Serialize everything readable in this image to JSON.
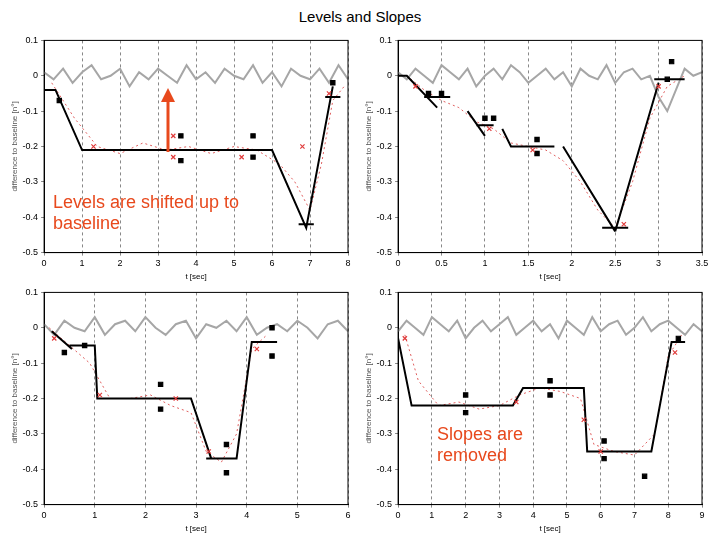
{
  "title": "Levels and Slopes",
  "chart_data": [
    {
      "type": "line",
      "xlabel": "t [sec]",
      "ylabel": "difference to baseline [n°]",
      "xlim": [
        0,
        8
      ],
      "xticks": [
        0,
        1,
        2,
        3,
        4,
        5,
        6,
        7,
        8
      ],
      "ylim": [
        -0.5,
        0.1
      ],
      "yticks": [
        -0.5,
        -0.4,
        -0.3,
        -0.2,
        -0.1,
        0,
        0.1
      ],
      "grid": "x",
      "annotation": "Levels are shifted up to baseline",
      "series": [
        {
          "type": "line",
          "color": "#a6a6a6",
          "line_style": "solid",
          "marker": "none",
          "x": [
            0,
            0.25,
            0.5,
            0.75,
            1,
            1.25,
            1.5,
            1.75,
            2,
            2.25,
            2.5,
            2.75,
            3,
            3.25,
            3.5,
            3.75,
            4,
            4.25,
            4.5,
            4.75,
            5,
            5.25,
            5.5,
            5.75,
            6,
            6.25,
            6.5,
            6.75,
            7,
            7.25,
            7.5,
            7.75,
            8
          ],
          "values": [
            0.01,
            -0.01,
            0.02,
            -0.02,
            0.01,
            0.03,
            -0.01,
            0.0,
            0.02,
            -0.03,
            0.01,
            -0.01,
            0.02,
            0.0,
            -0.02,
            0.03,
            -0.01,
            0.01,
            -0.02,
            0.02,
            0.0,
            -0.01,
            0.03,
            -0.02,
            0.01,
            -0.03,
            0.02,
            0.0,
            -0.01,
            0.02,
            -0.02,
            0.03,
            -0.01
          ]
        },
        {
          "type": "line",
          "color": "#e06060",
          "line_style": "dotted",
          "marker": "none",
          "x": [
            0.2,
            0.8,
            1.4,
            2,
            2.6,
            3.2,
            3.8,
            4.4,
            5,
            5.6,
            6.2,
            6.6,
            7.0,
            7.3,
            7.6,
            7.9
          ],
          "values": [
            -0.02,
            -0.12,
            -0.2,
            -0.22,
            -0.19,
            -0.21,
            -0.2,
            -0.22,
            -0.2,
            -0.21,
            -0.25,
            -0.3,
            -0.38,
            -0.25,
            -0.07,
            -0.03
          ]
        },
        {
          "type": "line",
          "color": "#000000",
          "line_style": "solid",
          "marker": "none",
          "x": [
            0,
            0.3,
            1.0,
            6.0,
            6.9,
            7.6,
            7.6,
            7.4,
            7.8,
            7.8,
            6.7,
            7.1
          ],
          "values": [
            -0.04,
            -0.04,
            -0.21,
            -0.21,
            -0.43,
            -0.03,
            null,
            -0.06,
            -0.06,
            null,
            -0.42,
            -0.42
          ]
        },
        {
          "type": "scatter",
          "color": "#000000",
          "marker": "square",
          "x": [
            0.4,
            3.6,
            3.6,
            5.5,
            5.5,
            7.6
          ],
          "values": [
            -0.07,
            -0.17,
            -0.24,
            -0.17,
            -0.23,
            -0.02
          ]
        },
        {
          "type": "scatter",
          "color": "#e03c3c",
          "marker": "x",
          "x": [
            1.3,
            3.4,
            3.4,
            5.2,
            6.8,
            7.5
          ],
          "values": [
            -0.2,
            -0.17,
            -0.23,
            -0.23,
            -0.2,
            -0.05
          ]
        }
      ]
    },
    {
      "type": "line",
      "xlabel": "t [sec]",
      "ylabel": "difference to baseline [n°]",
      "xlim": [
        0,
        3.5
      ],
      "xticks": [
        0,
        0.5,
        1,
        1.5,
        2,
        2.5,
        3,
        3.5
      ],
      "ylim": [
        -0.5,
        0.1
      ],
      "yticks": [
        -0.5,
        -0.4,
        -0.3,
        -0.2,
        -0.1,
        0,
        0.1
      ],
      "grid": "x",
      "series": [
        {
          "type": "line",
          "color": "#a6a6a6",
          "line_style": "solid",
          "marker": "none",
          "x": [
            0,
            0.1,
            0.2,
            0.3,
            0.4,
            0.5,
            0.6,
            0.7,
            0.8,
            0.9,
            1.0,
            1.1,
            1.2,
            1.3,
            1.4,
            1.5,
            1.6,
            1.7,
            1.8,
            1.9,
            2.0,
            2.1,
            2.2,
            2.3,
            2.4,
            2.5,
            2.6,
            2.7,
            2.8,
            2.9,
            3.0,
            3.1,
            3.2,
            3.3,
            3.4,
            3.5
          ],
          "values": [
            0.01,
            -0.01,
            0.02,
            0.0,
            -0.02,
            0.03,
            0.01,
            -0.01,
            0.02,
            -0.03,
            0.0,
            0.02,
            -0.01,
            0.03,
            0.01,
            -0.02,
            0.0,
            0.02,
            -0.01,
            0.01,
            -0.03,
            0.02,
            0.0,
            -0.01,
            0.03,
            -0.02,
            0.01,
            0.02,
            -0.01,
            0.0,
            -0.06,
            -0.1,
            -0.04,
            0.02,
            0.0,
            0.01
          ]
        },
        {
          "type": "line",
          "color": "#e06060",
          "line_style": "dotted",
          "marker": "none",
          "x": [
            0.1,
            0.3,
            0.5,
            0.7,
            0.9,
            1.1,
            1.3,
            1.5,
            1.7,
            1.9,
            2.1,
            2.3,
            2.5,
            2.7,
            2.9,
            3.1,
            3.3
          ],
          "values": [
            0,
            -0.04,
            -0.07,
            -0.09,
            -0.13,
            -0.15,
            -0.19,
            -0.2,
            -0.21,
            -0.24,
            -0.3,
            -0.38,
            -0.43,
            -0.3,
            -0.12,
            -0.03,
            0
          ]
        },
        {
          "type": "line",
          "color": "#000000",
          "line_style": "solid",
          "marker": "none",
          "x": [
            0,
            0.1,
            0.45,
            0.45,
            0.3,
            0.6,
            0.6,
            0.8,
            1.0,
            1.0,
            0.9,
            1.1,
            1.1,
            1.2,
            1.3,
            1.8,
            1.8,
            1.9,
            2.5,
            2.5,
            2.35,
            2.65,
            2.65,
            2.5,
            3.0,
            3.0,
            2.95,
            3.3
          ],
          "values": [
            0,
            0,
            -0.09,
            null,
            -0.06,
            -0.06,
            null,
            -0.1,
            -0.17,
            null,
            -0.14,
            -0.14,
            null,
            -0.15,
            -0.2,
            -0.2,
            null,
            -0.2,
            -0.44,
            null,
            -0.43,
            -0.43,
            null,
            -0.44,
            -0.02,
            null,
            -0.01,
            -0.01
          ]
        },
        {
          "type": "scatter",
          "color": "#000000",
          "marker": "square",
          "x": [
            0.35,
            0.5,
            1.0,
            1.1,
            1.6,
            1.6,
            3.15,
            3.1
          ],
          "values": [
            -0.05,
            -0.05,
            -0.12,
            -0.12,
            -0.18,
            -0.22,
            0.04,
            -0.01
          ]
        },
        {
          "type": "scatter",
          "color": "#e03c3c",
          "marker": "x",
          "x": [
            0.2,
            1.05,
            1.55,
            2.6,
            3.0
          ],
          "values": [
            -0.03,
            -0.15,
            -0.21,
            -0.42,
            -0.03
          ]
        }
      ]
    },
    {
      "type": "line",
      "xlabel": "t [sec]",
      "ylabel": "difference to baseline [n°]",
      "xlim": [
        0,
        6
      ],
      "xticks": [
        0,
        1,
        2,
        3,
        4,
        5,
        6
      ],
      "ylim": [
        -0.5,
        0.1
      ],
      "yticks": [
        -0.5,
        -0.4,
        -0.3,
        -0.2,
        -0.1,
        0,
        0.1
      ],
      "grid": "x",
      "series": [
        {
          "type": "line",
          "color": "#a6a6a6",
          "line_style": "solid",
          "marker": "none",
          "x": [
            0,
            0.2,
            0.4,
            0.6,
            0.8,
            1.0,
            1.2,
            1.4,
            1.6,
            1.8,
            2.0,
            2.2,
            2.4,
            2.6,
            2.8,
            3.0,
            3.2,
            3.4,
            3.6,
            3.8,
            4.0,
            4.2,
            4.4,
            4.6,
            4.8,
            5.0,
            5.2,
            5.4,
            5.6,
            5.8,
            6.0
          ],
          "values": [
            0.01,
            -0.02,
            0.02,
            0.0,
            -0.01,
            0.03,
            -0.02,
            0.01,
            0.02,
            -0.01,
            0.03,
            0.0,
            -0.02,
            0.01,
            0.02,
            -0.03,
            0.01,
            0.0,
            0.02,
            -0.01,
            0.03,
            -0.02,
            0.0,
            0.01,
            -0.01,
            0.02,
            0.0,
            -0.03,
            0.01,
            0.02,
            -0.01
          ]
        },
        {
          "type": "line",
          "color": "#e06060",
          "line_style": "dotted",
          "marker": "none",
          "x": [
            0.1,
            0.5,
            0.9,
            1.3,
            1.7,
            2.1,
            2.5,
            2.9,
            3.2,
            3.5,
            3.8,
            4.1,
            4.4
          ],
          "values": [
            0,
            -0.05,
            -0.1,
            -0.2,
            -0.2,
            -0.19,
            -0.22,
            -0.24,
            -0.35,
            -0.38,
            -0.3,
            -0.06,
            -0.02
          ]
        },
        {
          "type": "line",
          "color": "#000000",
          "line_style": "solid",
          "marker": "none",
          "x": [
            0.15,
            0.55,
            0.55,
            0.5,
            1.0,
            1.05,
            2.9,
            3.3,
            3.3,
            3.2,
            3.8,
            4.1,
            4.6
          ],
          "values": [
            -0.01,
            -0.06,
            null,
            -0.05,
            -0.05,
            -0.2,
            -0.2,
            -0.37,
            null,
            -0.37,
            -0.37,
            -0.04,
            -0.04
          ]
        },
        {
          "type": "scatter",
          "color": "#000000",
          "marker": "square",
          "x": [
            0.4,
            0.8,
            2.3,
            2.3,
            3.6,
            3.6,
            4.5,
            4.5
          ],
          "values": [
            -0.07,
            -0.05,
            -0.16,
            -0.23,
            -0.33,
            -0.41,
            0.0,
            -0.08
          ]
        },
        {
          "type": "scatter",
          "color": "#e03c3c",
          "marker": "x",
          "x": [
            0.2,
            1.1,
            2.6,
            3.25,
            4.2
          ],
          "values": [
            -0.03,
            -0.19,
            -0.2,
            -0.35,
            -0.06
          ]
        }
      ]
    },
    {
      "type": "line",
      "xlabel": "t [sec]",
      "ylabel": "difference to baseline [n°]",
      "xlim": [
        0,
        9
      ],
      "xticks": [
        0,
        1,
        2,
        3,
        4,
        5,
        6,
        7,
        8,
        9
      ],
      "ylim": [
        -0.5,
        0.1
      ],
      "yticks": [
        -0.5,
        -0.4,
        -0.3,
        -0.2,
        -0.1,
        0,
        0.1
      ],
      "grid": "x",
      "annotation": "Slopes are removed",
      "series": [
        {
          "type": "line",
          "color": "#a6a6a6",
          "line_style": "solid",
          "marker": "none",
          "x": [
            0,
            0.25,
            0.5,
            0.75,
            1,
            1.25,
            1.5,
            1.75,
            2,
            2.25,
            2.5,
            2.75,
            3,
            3.25,
            3.5,
            3.75,
            4,
            4.25,
            4.5,
            4.75,
            5,
            5.25,
            5.5,
            5.75,
            6,
            6.25,
            6.5,
            6.75,
            7,
            7.25,
            7.5,
            7.75,
            8,
            8.25,
            8.5,
            8.75,
            9
          ],
          "values": [
            -0.01,
            0.02,
            0.0,
            -0.02,
            0.03,
            0.01,
            -0.01,
            0.02,
            -0.03,
            0.0,
            0.02,
            -0.01,
            0.01,
            0.03,
            -0.02,
            0.0,
            0.02,
            -0.01,
            0.01,
            -0.03,
            0.02,
            0.0,
            -0.02,
            0.03,
            -0.01,
            0.01,
            0.02,
            -0.02,
            0.0,
            0.03,
            -0.01,
            0.01,
            0.02,
            0.0,
            -0.02,
            0.01,
            -0.01
          ]
        },
        {
          "type": "line",
          "color": "#e06060",
          "line_style": "dotted",
          "marker": "none",
          "x": [
            0.2,
            0.6,
            1.2,
            1.8,
            2.4,
            3,
            3.6,
            4.2,
            4.8,
            5.4,
            5.8,
            6.4,
            7,
            7.6,
            8,
            8.4
          ],
          "values": [
            -0.02,
            -0.15,
            -0.22,
            -0.21,
            -0.23,
            -0.22,
            -0.19,
            -0.17,
            -0.18,
            -0.2,
            -0.33,
            -0.35,
            -0.36,
            -0.3,
            -0.08,
            -0.02
          ]
        },
        {
          "type": "line",
          "color": "#000000",
          "line_style": "solid",
          "marker": "none",
          "x": [
            0,
            0.4,
            3.4,
            3.7,
            5.5,
            5.6,
            7.5,
            8.1,
            8.5
          ],
          "values": [
            -0.03,
            -0.22,
            -0.22,
            -0.17,
            -0.17,
            -0.35,
            -0.35,
            -0.04,
            -0.04
          ]
        },
        {
          "type": "scatter",
          "color": "#000000",
          "marker": "square",
          "x": [
            2,
            2,
            4.5,
            4.5,
            6.1,
            6.1,
            7.3,
            8.3
          ],
          "values": [
            -0.19,
            -0.24,
            -0.15,
            -0.19,
            -0.32,
            -0.37,
            -0.42,
            -0.03
          ]
        },
        {
          "type": "scatter",
          "color": "#e03c3c",
          "marker": "x",
          "x": [
            0.2,
            3.5,
            5.5,
            6.0,
            8.2
          ],
          "values": [
            -0.03,
            -0.21,
            -0.26,
            -0.35,
            -0.07
          ]
        }
      ]
    }
  ]
}
